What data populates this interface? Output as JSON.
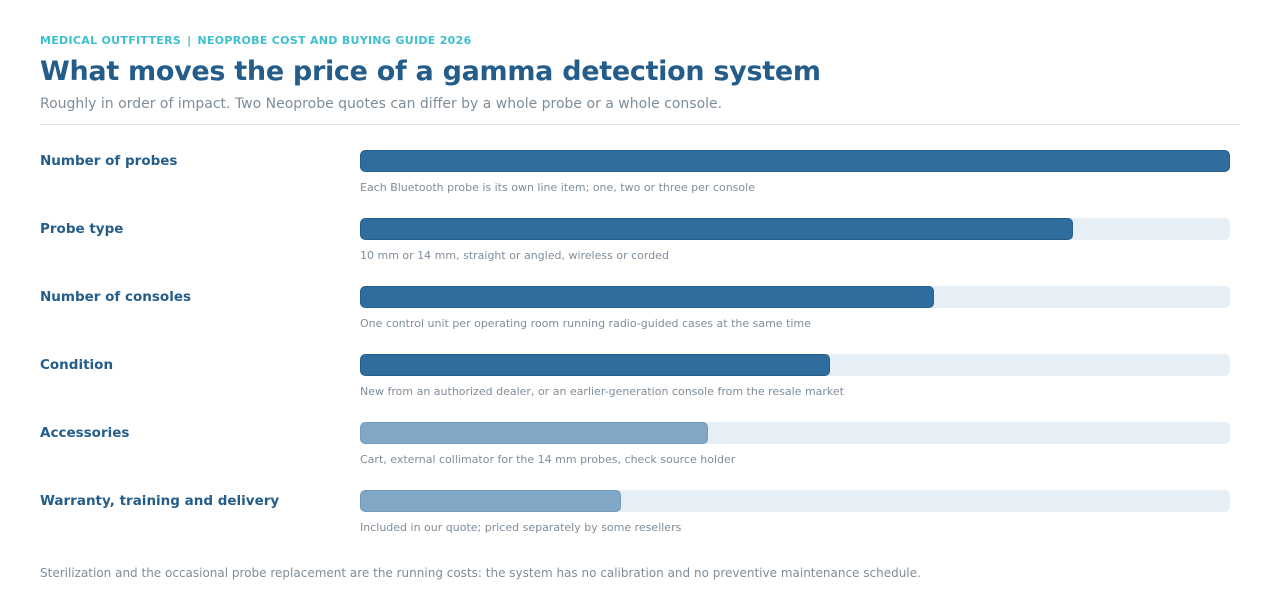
{
  "header": {
    "brand": "MEDICAL OUTFITTERS",
    "separator": "|",
    "guide": "NEOPROBE COST AND BUYING GUIDE 2026"
  },
  "chart_data": {
    "type": "bar",
    "orientation": "horizontal",
    "title": "What moves the price of a gamma detection system",
    "subtitle": "Roughly in order of impact. Two Neoprobe quotes can differ by a whole probe or a whole console.",
    "xlim": [
      0,
      1
    ],
    "categories": [
      "Number of probes",
      "Probe type",
      "Number of consoles",
      "Condition",
      "Accessories",
      "Warranty, training and delivery"
    ],
    "values": [
      1.0,
      0.82,
      0.66,
      0.54,
      0.4,
      0.3
    ],
    "notes": [
      "Each Bluetooth probe is its own line item; one, two or three per console",
      "10 mm or 14 mm, straight or angled, wireless or corded",
      "One control unit per operating room running radio-guided cases at the same time",
      "New from an authorized dealer, or an earlier-generation console from the resale market",
      "Cart, external collimator for the 14 mm probes, check source holder",
      "Included in our quote; priced separately by some resellers"
    ],
    "tier": [
      "strong",
      "strong",
      "strong",
      "strong",
      "light",
      "light"
    ],
    "colors": {
      "strong": "#2e6d9e",
      "light": "#80a8c6",
      "track": "#e6eef6"
    }
  },
  "footer": {
    "note": "Sterilization and the occasional probe replacement are the running costs: the system has no calibration and no preventive maintenance schedule."
  }
}
